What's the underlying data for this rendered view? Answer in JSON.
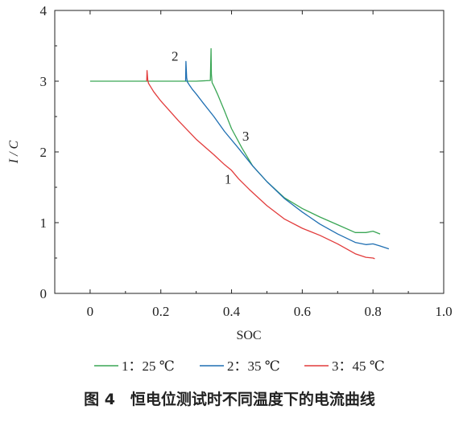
{
  "chart_data": {
    "type": "line",
    "xlabel": "SOC",
    "ylabel": "I / C",
    "xlim": [
      -0.1,
      1.0
    ],
    "ylim": [
      0,
      4
    ],
    "xticks": [
      "0",
      "0.2",
      "0.4",
      "0.6",
      "0.8",
      "1.0"
    ],
    "xtick_values": [
      0,
      0.2,
      0.4,
      0.6,
      0.8,
      1.0
    ],
    "yticks": [
      "0",
      "1",
      "2",
      "3",
      "4"
    ],
    "ytick_values": [
      0,
      1,
      2,
      3,
      4
    ],
    "grid": false,
    "legend_position": "bottom",
    "series": [
      {
        "name": "1：25 ℃",
        "id": "25",
        "curve_label": "3",
        "color": "#3aa655",
        "x": [
          0.0,
          0.05,
          0.1,
          0.15,
          0.2,
          0.25,
          0.3,
          0.34,
          0.342,
          0.343,
          0.345,
          0.35,
          0.36,
          0.38,
          0.4,
          0.43,
          0.46,
          0.5,
          0.55,
          0.6,
          0.65,
          0.7,
          0.75,
          0.78,
          0.8,
          0.82
        ],
        "y": [
          3.0,
          3.0,
          3.0,
          3.0,
          3.0,
          3.0,
          3.0,
          3.01,
          3.46,
          3.1,
          2.98,
          2.93,
          2.82,
          2.58,
          2.33,
          2.05,
          1.8,
          1.58,
          1.35,
          1.2,
          1.08,
          0.97,
          0.86,
          0.86,
          0.88,
          0.84
        ]
      },
      {
        "name": "2：35 ℃",
        "id": "35",
        "curve_label": "2",
        "color": "#1f6fb2",
        "x": [
          0.27,
          0.271,
          0.273,
          0.275,
          0.28,
          0.29,
          0.3,
          0.32,
          0.35,
          0.38,
          0.42,
          0.46,
          0.5,
          0.55,
          0.6,
          0.65,
          0.7,
          0.75,
          0.78,
          0.8,
          0.82,
          0.845
        ],
        "y": [
          3.0,
          3.28,
          3.05,
          2.99,
          2.95,
          2.88,
          2.82,
          2.69,
          2.5,
          2.29,
          2.05,
          1.8,
          1.58,
          1.34,
          1.15,
          0.98,
          0.84,
          0.72,
          0.69,
          0.7,
          0.67,
          0.63
        ]
      },
      {
        "name": "3：45 ℃",
        "id": "45",
        "curve_label": "1",
        "color": "#e23c3c",
        "x": [
          0.16,
          0.161,
          0.163,
          0.165,
          0.17,
          0.18,
          0.2,
          0.25,
          0.3,
          0.35,
          0.38,
          0.4,
          0.42,
          0.45,
          0.5,
          0.55,
          0.6,
          0.65,
          0.7,
          0.75,
          0.78,
          0.8,
          0.805
        ],
        "y": [
          3.0,
          3.15,
          3.02,
          2.97,
          2.93,
          2.85,
          2.72,
          2.44,
          2.18,
          1.96,
          1.82,
          1.74,
          1.62,
          1.47,
          1.24,
          1.05,
          0.92,
          0.82,
          0.7,
          0.56,
          0.51,
          0.5,
          0.49
        ]
      }
    ]
  },
  "caption": "图 4　恒电位测试时不同温度下的电流曲线"
}
